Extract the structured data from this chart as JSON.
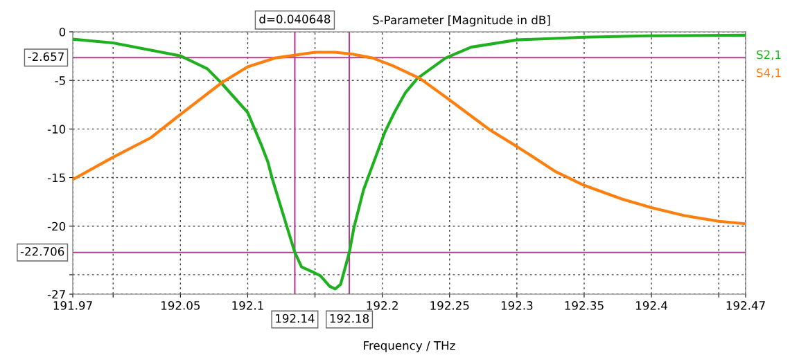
{
  "chart_data": {
    "type": "line",
    "title": "S-Parameter [Magnitude in dB]",
    "xlabel": "Frequency / THz",
    "series": [
      {
        "name": "S2,1",
        "color": "#1fb01f",
        "x": [
          191.97,
          192.0,
          192.05,
          192.07,
          192.08,
          192.1,
          192.11,
          192.115,
          192.118,
          192.129,
          192.135,
          192.14,
          192.148,
          192.154,
          192.161,
          192.165,
          192.169,
          192.1755,
          192.179,
          192.186,
          192.191,
          192.202,
          192.209,
          192.217,
          192.226,
          192.247,
          192.266,
          192.3,
          192.35,
          192.397,
          192.47
        ],
        "values": [
          -0.76,
          -1.14,
          -2.47,
          -3.8,
          -5.2,
          -8.3,
          -11.6,
          -13.4,
          -15.0,
          -20.0,
          -22.7,
          -24.2,
          -24.7,
          -25.1,
          -26.2,
          -26.45,
          -26.0,
          -22.7,
          -20.1,
          -16.3,
          -14.4,
          -10.3,
          -8.3,
          -6.3,
          -4.8,
          -2.7,
          -1.58,
          -0.83,
          -0.55,
          -0.41,
          -0.35
        ]
      },
      {
        "name": "S4,1",
        "color": "#ff7f0e",
        "x": [
          191.97,
          192.0,
          192.028,
          192.05,
          192.081,
          192.1,
          192.12,
          192.15,
          192.165,
          192.178,
          192.193,
          192.208,
          192.228,
          192.248,
          192.28,
          192.3,
          192.329,
          192.35,
          192.378,
          192.4,
          192.424,
          192.45,
          192.47
        ],
        "values": [
          -15.2,
          -12.9,
          -10.9,
          -8.5,
          -5.2,
          -3.6,
          -2.7,
          -2.1,
          -2.1,
          -2.3,
          -2.7,
          -3.5,
          -4.8,
          -6.8,
          -10.1,
          -11.8,
          -14.4,
          -15.8,
          -17.2,
          -18.1,
          -18.9,
          -19.5,
          -19.75
        ]
      }
    ],
    "xlim": [
      191.97,
      192.47
    ],
    "ylim": [
      -27,
      0
    ],
    "xticks": [
      191.97,
      {
        "value": 192.0,
        "label": null
      },
      192.05,
      192.1,
      {
        "value": 192.15,
        "label": null
      },
      192.2,
      192.25,
      192.3,
      192.35,
      192.4,
      {
        "value": 192.45,
        "label": null
      },
      192.47
    ],
    "yticks": [
      0,
      -5,
      -10,
      -15,
      -20,
      {
        "value": -25,
        "label": null
      },
      -27
    ],
    "ref_lines": [
      {
        "axis": "y",
        "value": -2.657,
        "label": "-2.657",
        "color": "#b0408f"
      },
      {
        "axis": "y",
        "value": -22.706,
        "label": "-22.706",
        "color": "#b0408f"
      },
      {
        "axis": "x",
        "value": 192.135,
        "label": "192.14",
        "color": "#b0408f"
      },
      {
        "axis": "x",
        "value": 192.1755,
        "label": "192.18",
        "color": "#b0408f"
      }
    ],
    "annotations": [
      "d=0.040648"
    ],
    "grid": true,
    "legend": "right",
    "marker": "none",
    "line_style": "solid"
  }
}
